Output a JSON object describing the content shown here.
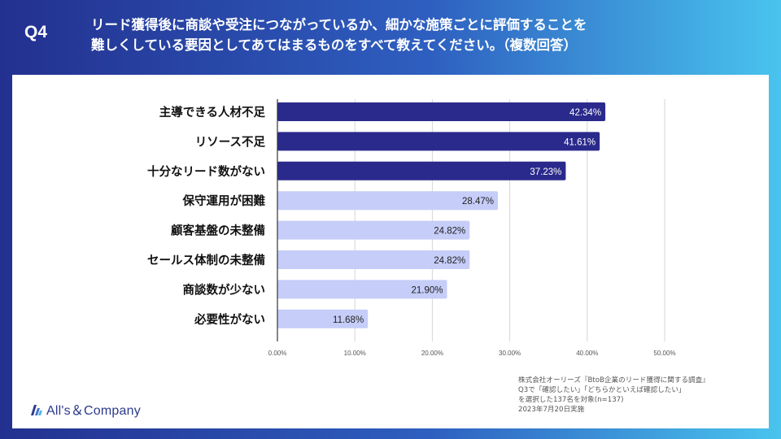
{
  "header": {
    "question_number": "Q4",
    "question_line1": "リード獲得後に商談や受注につながっているか、細かな施策ごとに評価することを",
    "question_line2": "難しくしている要因としてあてはまるものをすべて教えてください。（複数回答）"
  },
  "colors": {
    "bar_dark": "#2a2a8c",
    "bar_light": "#c5cdf8",
    "grid": "#d6d6d6",
    "axis": "#333333"
  },
  "chart_data": {
    "type": "bar",
    "orientation": "horizontal",
    "categories": [
      "主導できる人材不足",
      "リソース不足",
      "十分なリード数がない",
      "保守運用が困難",
      "顧客基盤の未整備",
      "セールス体制の未整備",
      "商談数が少ない",
      "必要性がない"
    ],
    "values": [
      42.34,
      41.61,
      37.23,
      28.47,
      24.82,
      24.82,
      21.9,
      11.68
    ],
    "value_labels": [
      "42.34%",
      "41.61%",
      "37.23%",
      "28.47%",
      "24.82%",
      "24.82%",
      "21.90%",
      "11.68%"
    ],
    "highlight": [
      true,
      true,
      true,
      false,
      false,
      false,
      false,
      false
    ],
    "xlim": [
      0,
      50
    ],
    "xticks": [
      0,
      10,
      20,
      30,
      40,
      50
    ],
    "xtick_labels": [
      "0.00%",
      "10.00%",
      "20.00%",
      "30.00%",
      "40.00%",
      "50.00%"
    ],
    "grid": true,
    "title": "",
    "xlabel": "",
    "ylabel": ""
  },
  "source": {
    "line1": "株式会社オーリーズ『BtoB企業のリード獲得に関する調査』",
    "line2": "Q3で「確認したい」「どちらかといえば確認したい」",
    "line3": "を選択した137名を対象(n=137)",
    "line4": "2023年7月20日実施"
  },
  "logo": {
    "text": "All's＆Company",
    "icon": "stacked-bars-logo-icon"
  }
}
